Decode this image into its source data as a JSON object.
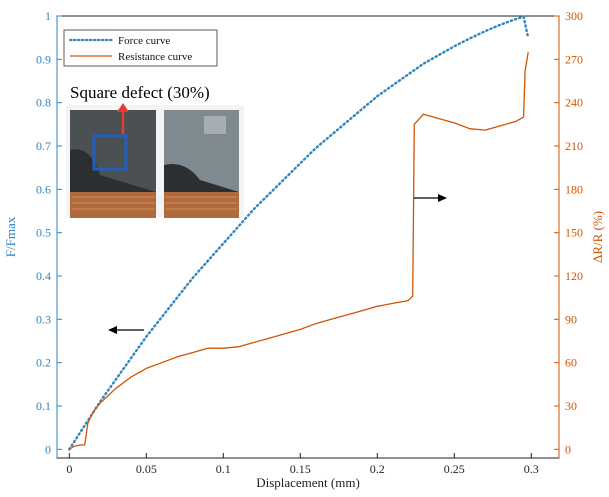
{
  "chart_data": {
    "type": "line",
    "xlabel": "Displacement (mm)",
    "ylabel_left": "F/Fmax",
    "ylabel_right": "ΔR/R (%)",
    "xlim": [
      -0.008,
      0.318
    ],
    "ylim_left": [
      -0.02,
      1.0
    ],
    "ylim_right": [
      -6,
      300
    ],
    "x_ticks": [
      0,
      0.05,
      0.1,
      0.15,
      0.2,
      0.25,
      0.3
    ],
    "x_tick_labels": [
      "0",
      "0.05",
      "0.1",
      "0.15",
      "0.2",
      "0.25",
      "0.3"
    ],
    "y_left_ticks": [
      0,
      0.1,
      0.2,
      0.3,
      0.4,
      0.5,
      0.6,
      0.7,
      0.8,
      0.9,
      1
    ],
    "y_left_tick_labels": [
      "0",
      "0.1",
      "0.2",
      "0.3",
      "0.4",
      "0.5",
      "0.6",
      "0.7",
      "0.8",
      "0.9",
      "1"
    ],
    "y_right_ticks": [
      0,
      30,
      60,
      90,
      120,
      150,
      180,
      210,
      240,
      270,
      300
    ],
    "y_right_tick_labels": [
      "0",
      "30",
      "60",
      "90",
      "120",
      "150",
      "180",
      "210",
      "240",
      "270",
      "300"
    ],
    "grid": false,
    "legend_position": "top-left",
    "series": [
      {
        "name": "Force curve",
        "axis": "left",
        "style": "dotted",
        "color": "#2e86c1",
        "x": [
          0,
          0.01,
          0.02,
          0.03,
          0.04,
          0.05,
          0.06,
          0.07,
          0.08,
          0.09,
          0.1,
          0.11,
          0.12,
          0.13,
          0.14,
          0.15,
          0.16,
          0.17,
          0.18,
          0.19,
          0.2,
          0.21,
          0.22,
          0.23,
          0.24,
          0.25,
          0.26,
          0.27,
          0.28,
          0.29,
          0.295,
          0.298
        ],
        "y": [
          0,
          0.055,
          0.11,
          0.16,
          0.21,
          0.26,
          0.305,
          0.35,
          0.395,
          0.435,
          0.475,
          0.515,
          0.555,
          0.59,
          0.625,
          0.66,
          0.695,
          0.725,
          0.755,
          0.785,
          0.815,
          0.84,
          0.865,
          0.89,
          0.91,
          0.93,
          0.948,
          0.965,
          0.98,
          0.993,
          0.998,
          0.95
        ]
      },
      {
        "name": "Resistance curve",
        "axis": "right",
        "style": "solid",
        "color": "#d35400",
        "x": [
          0,
          0.003,
          0.007,
          0.01,
          0.012,
          0.015,
          0.02,
          0.03,
          0.04,
          0.05,
          0.06,
          0.07,
          0.08,
          0.09,
          0.1,
          0.11,
          0.12,
          0.13,
          0.14,
          0.15,
          0.16,
          0.17,
          0.18,
          0.19,
          0.2,
          0.21,
          0.22,
          0.223,
          0.224,
          0.23,
          0.24,
          0.25,
          0.26,
          0.27,
          0.28,
          0.29,
          0.295,
          0.296,
          0.298
        ],
        "y": [
          0,
          2,
          3,
          3,
          18,
          25,
          32,
          42,
          50,
          56,
          60,
          64,
          67,
          70,
          70,
          71,
          74,
          77,
          80,
          83,
          87,
          90,
          93,
          96,
          99,
          101,
          103,
          106,
          225,
          232,
          229,
          226,
          222,
          221,
          224,
          227,
          230,
          262,
          275
        ]
      }
    ],
    "annotations": [
      "← (points to left axis, force curve)",
      "→ (points to right axis, resistance curve)"
    ]
  },
  "legend": {
    "force_label": "Force curve",
    "resistance_label": "Resistance curve"
  },
  "photo": {
    "caption": "Square defect (30%)"
  },
  "colors": {
    "force": "#2e86c1",
    "resistance": "#d35400",
    "axis": "#222222",
    "defect_box": "#1f5fbf",
    "defect_arrow": "#e53935"
  }
}
